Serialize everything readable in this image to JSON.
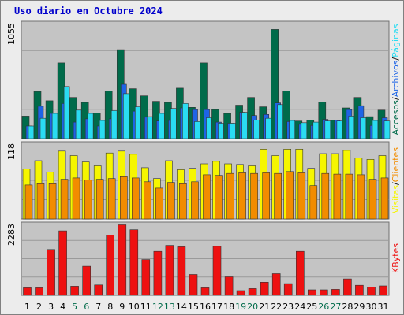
{
  "title": "Uso diario en Octubre 2024",
  "colors": {
    "accesos": "#006b4a",
    "paginas": "#1e64e6",
    "archivos": "#2adcf2",
    "visitas": "#f6f600",
    "clientes": "#f28c00",
    "kbytes": "#ee1111",
    "weekend_label": "#006b4a",
    "weekday_label": "#000000",
    "plot_bg": "#c4c4c4",
    "frame_bg": "#ececec"
  },
  "chart_data": [
    {
      "type": "bar",
      "panel": "top",
      "ytick_label": "1055",
      "ylim": [
        0,
        1055
      ],
      "categories": [
        "1",
        "2",
        "3",
        "4",
        "5",
        "6",
        "7",
        "8",
        "9",
        "10",
        "11",
        "12",
        "13",
        "14",
        "15",
        "16",
        "17",
        "18",
        "19",
        "20",
        "21",
        "22",
        "23",
        "24",
        "25",
        "26",
        "27",
        "28",
        "29",
        "30",
        "31"
      ],
      "series": [
        {
          "name": "Accesos",
          "values": [
            205,
            430,
            345,
            690,
            375,
            330,
            235,
            435,
            810,
            455,
            390,
            340,
            330,
            460,
            285,
            690,
            265,
            230,
            305,
            375,
            290,
            995,
            435,
            160,
            170,
            335,
            170,
            280,
            375,
            200,
            260
          ]
        },
        {
          "name": "Páginas",
          "values": [
            115,
            295,
            230,
            320,
            150,
            180,
            115,
            180,
            495,
            250,
            195,
            160,
            165,
            280,
            265,
            265,
            150,
            140,
            240,
            210,
            220,
            325,
            155,
            130,
            120,
            175,
            170,
            265,
            300,
            120,
            190
          ]
        },
        {
          "name": "Archivos",
          "values": [
            115,
            185,
            230,
            475,
            260,
            230,
            165,
            255,
            410,
            290,
            200,
            230,
            275,
            320,
            155,
            190,
            140,
            140,
            240,
            170,
            185,
            310,
            165,
            145,
            150,
            160,
            160,
            205,
            190,
            165,
            160
          ]
        }
      ]
    },
    {
      "type": "bar",
      "panel": "middle",
      "ytick_label": "118",
      "ylim": [
        0,
        118
      ],
      "categories": [
        "1",
        "2",
        "3",
        "4",
        "5",
        "6",
        "7",
        "8",
        "9",
        "10",
        "11",
        "12",
        "13",
        "14",
        "15",
        "16",
        "17",
        "18",
        "19",
        "20",
        "21",
        "22",
        "23",
        "24",
        "25",
        "26",
        "27",
        "28",
        "29",
        "30",
        "31"
      ],
      "series": [
        {
          "name": "Visitas",
          "values": [
            78,
            91,
            73,
            106,
            99,
            89,
            83,
            103,
            106,
            101,
            80,
            63,
            91,
            77,
            79,
            86,
            90,
            86,
            85,
            83,
            109,
            99,
            109,
            109,
            79,
            102,
            102,
            107,
            95,
            93,
            99
          ]
        },
        {
          "name": "Clientes",
          "values": [
            53,
            55,
            55,
            62,
            64,
            61,
            62,
            63,
            66,
            64,
            58,
            48,
            57,
            55,
            58,
            69,
            68,
            71,
            72,
            71,
            72,
            71,
            74,
            72,
            52,
            71,
            70,
            70,
            69,
            62,
            64
          ]
        }
      ]
    },
    {
      "type": "bar",
      "panel": "bottom",
      "ytick_label": "2283",
      "ylim": [
        0,
        2283
      ],
      "categories": [
        "1",
        "2",
        "3",
        "4",
        "5",
        "6",
        "7",
        "8",
        "9",
        "10",
        "11",
        "12",
        "13",
        "14",
        "15",
        "16",
        "17",
        "18",
        "19",
        "20",
        "21",
        "22",
        "23",
        "24",
        "25",
        "26",
        "27",
        "28",
        "29",
        "30",
        "31"
      ],
      "series": [
        {
          "name": "KBytes",
          "values": [
            240,
            240,
            1460,
            2055,
            290,
            925,
            330,
            1915,
            2245,
            2090,
            1140,
            1400,
            1590,
            1545,
            665,
            240,
            1560,
            590,
            150,
            215,
            420,
            690,
            375,
            1400,
            175,
            175,
            190,
            525,
            320,
            260,
            300
          ]
        }
      ]
    }
  ],
  "legend": {
    "top": [
      {
        "text": "Accesos",
        "color_key": "accesos"
      },
      {
        "text": "/",
        "color_key": "weekday_label"
      },
      {
        "text": "Archivos",
        "color_key": "paginas"
      },
      {
        "text": "/",
        "color_key": "weekday_label"
      },
      {
        "text": "Páginas",
        "color_key": "archivos"
      }
    ],
    "middle": [
      {
        "text": "Visitas",
        "color_key": "visitas"
      },
      {
        "text": "/",
        "color_key": "weekday_label"
      },
      {
        "text": "Clientes",
        "color_key": "clientes"
      }
    ],
    "bottom": [
      {
        "text": "KBytes",
        "color_key": "kbytes"
      }
    ]
  },
  "weekend_days": [
    "5",
    "6",
    "12",
    "13",
    "19",
    "20",
    "26",
    "27"
  ]
}
